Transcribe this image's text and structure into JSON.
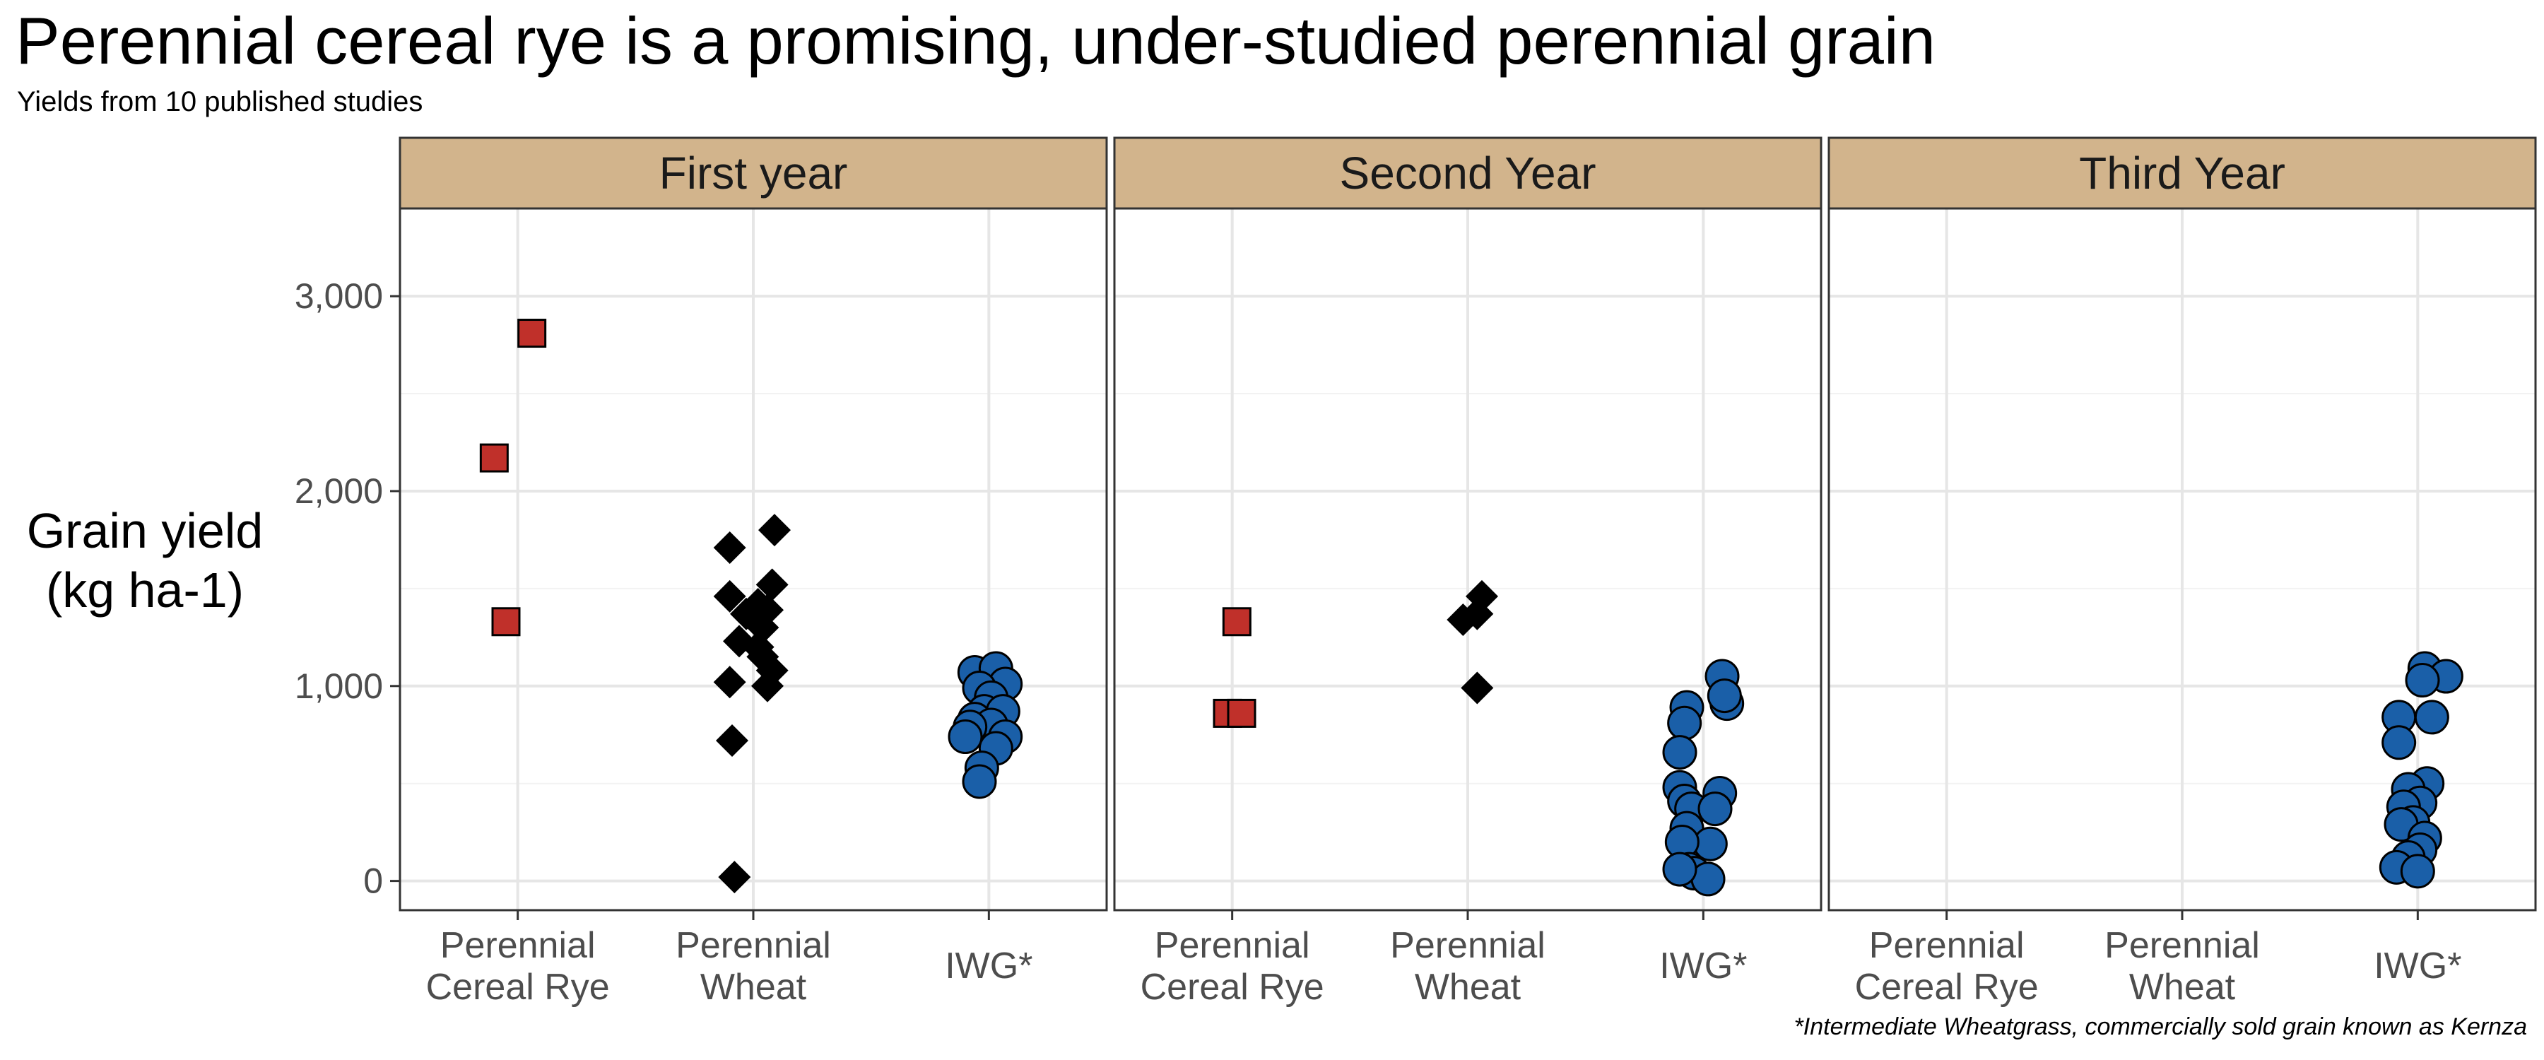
{
  "chart_data": {
    "type": "scatter",
    "title": "Perennial cereal rye is a promising, under-studied perennial grain",
    "subtitle": "Yields from 10 published studies",
    "ylabel_lines": [
      "Grain yield",
      "(kg ha-1)"
    ],
    "caption": "*Intermediate Wheatgrass, commercially sold grain known as Kernza",
    "categories": [
      {
        "lines": [
          "Perennial",
          "Cereal Rye"
        ]
      },
      {
        "lines": [
          "Perennial",
          "Wheat"
        ]
      },
      {
        "lines": [
          "IWG*"
        ]
      }
    ],
    "ylim": [
      -150,
      3450
    ],
    "yticks": [
      0,
      1000,
      2000,
      3000
    ],
    "ytick_labels": [
      "0",
      "1,000",
      "2,000",
      "3,000"
    ],
    "grid": true,
    "strip_color": "#d2b48c",
    "marker_styles": [
      {
        "shape": "square",
        "color": "#c0302a"
      },
      {
        "shape": "diamond",
        "color": "#000000"
      },
      {
        "shape": "circle",
        "color": "#1a5fa8"
      }
    ],
    "panels": [
      {
        "name": "First year",
        "series": [
          {
            "category": 0,
            "points": [
              [
                0.06,
                2810
              ],
              [
                -0.1,
                2170
              ],
              [
                -0.05,
                1330
              ]
            ]
          },
          {
            "category": 1,
            "points": [
              [
                -0.1,
                1710
              ],
              [
                0.09,
                1800
              ],
              [
                -0.1,
                1460
              ],
              [
                0.08,
                1520
              ],
              [
                0.02,
                1420
              ],
              [
                0.06,
                1390
              ],
              [
                -0.03,
                1370
              ],
              [
                0.04,
                1300
              ],
              [
                -0.06,
                1230
              ],
              [
                0.02,
                1200
              ],
              [
                0.04,
                1150
              ],
              [
                0.08,
                1080
              ],
              [
                -0.1,
                1020
              ],
              [
                0.06,
                1000
              ],
              [
                -0.09,
                720
              ],
              [
                -0.08,
                20
              ]
            ]
          },
          {
            "category": 2,
            "points": [
              [
                -0.06,
                1070
              ],
              [
                0.03,
                1090
              ],
              [
                0.07,
                1010
              ],
              [
                -0.04,
                990
              ],
              [
                0.01,
                940
              ],
              [
                -0.02,
                870
              ],
              [
                0.06,
                870
              ],
              [
                -0.06,
                830
              ],
              [
                0.01,
                800
              ],
              [
                -0.08,
                790
              ],
              [
                -0.1,
                740
              ],
              [
                0.07,
                740
              ],
              [
                0.03,
                680
              ],
              [
                -0.03,
                580
              ],
              [
                -0.04,
                510
              ]
            ]
          }
        ]
      },
      {
        "name": "Second Year",
        "series": [
          {
            "category": 0,
            "points": [
              [
                0.02,
                1330
              ],
              [
                -0.02,
                860
              ],
              [
                0.04,
                860
              ]
            ]
          },
          {
            "category": 1,
            "points": [
              [
                0.06,
                1460
              ],
              [
                -0.02,
                1340
              ],
              [
                0.04,
                1370
              ],
              [
                0.04,
                990
              ]
            ]
          },
          {
            "category": 2,
            "points": [
              [
                0.08,
                1050
              ],
              [
                0.1,
                910
              ],
              [
                -0.07,
                890
              ],
              [
                0.09,
                950
              ],
              [
                -0.08,
                810
              ],
              [
                -0.1,
                660
              ],
              [
                -0.1,
                480
              ],
              [
                0.07,
                450
              ],
              [
                -0.08,
                410
              ],
              [
                -0.05,
                370
              ],
              [
                0.05,
                370
              ],
              [
                -0.07,
                270
              ],
              [
                0.03,
                190
              ],
              [
                -0.09,
                200
              ],
              [
                -0.06,
                60
              ],
              [
                -0.04,
                40
              ],
              [
                0.02,
                10
              ],
              [
                -0.1,
                60
              ]
            ]
          }
        ]
      },
      {
        "name": "Third Year",
        "series": [
          {
            "category": 2,
            "points": [
              [
                0.03,
                1090
              ],
              [
                0.12,
                1050
              ],
              [
                0.02,
                1030
              ],
              [
                -0.08,
                840
              ],
              [
                0.06,
                840
              ],
              [
                -0.08,
                710
              ],
              [
                0.04,
                500
              ],
              [
                -0.04,
                470
              ],
              [
                0.01,
                400
              ],
              [
                -0.06,
                380
              ],
              [
                -0.02,
                300
              ],
              [
                -0.07,
                290
              ],
              [
                0.03,
                220
              ],
              [
                0.01,
                160
              ],
              [
                -0.04,
                120
              ],
              [
                -0.09,
                70
              ],
              [
                0.0,
                50
              ]
            ]
          }
        ]
      }
    ]
  }
}
